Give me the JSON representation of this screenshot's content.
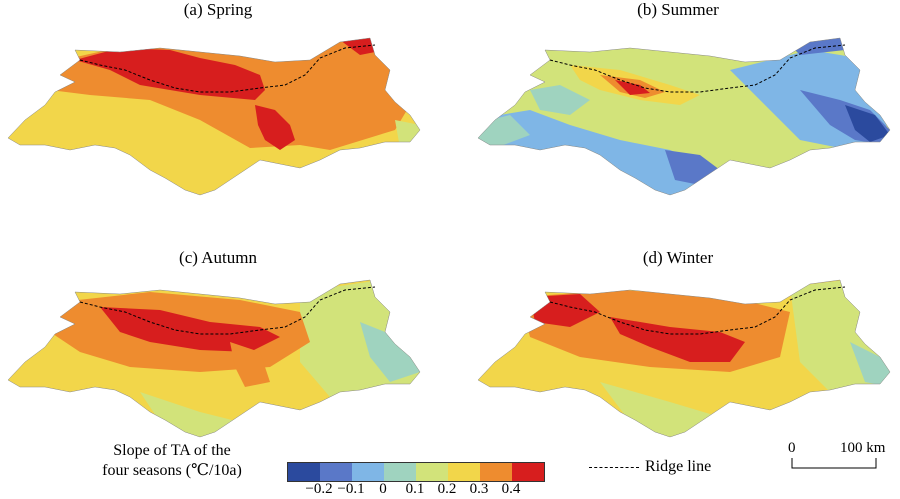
{
  "panels": [
    {
      "title": "(a) Spring"
    },
    {
      "title": "(b) Summer"
    },
    {
      "title": "(c) Autumn"
    },
    {
      "title": "(d) Winter"
    }
  ],
  "legend": {
    "title_line1": "Slope of TA of the",
    "title_line2": "four seasons (℃/10a)",
    "colors": [
      "#2b4a9e",
      "#5a78c8",
      "#7fb6e6",
      "#9fd3bf",
      "#d2e37a",
      "#f2d64a",
      "#ee8c2f",
      "#d71e1e"
    ],
    "tick_labels": [
      "−0.2",
      "−0.1",
      "0",
      "0.1",
      "0.2",
      "0.3",
      "0.4"
    ]
  },
  "ridge_legend": {
    "label": "Ridge line"
  },
  "scale": {
    "zero": "0",
    "distance": "100 km"
  }
}
